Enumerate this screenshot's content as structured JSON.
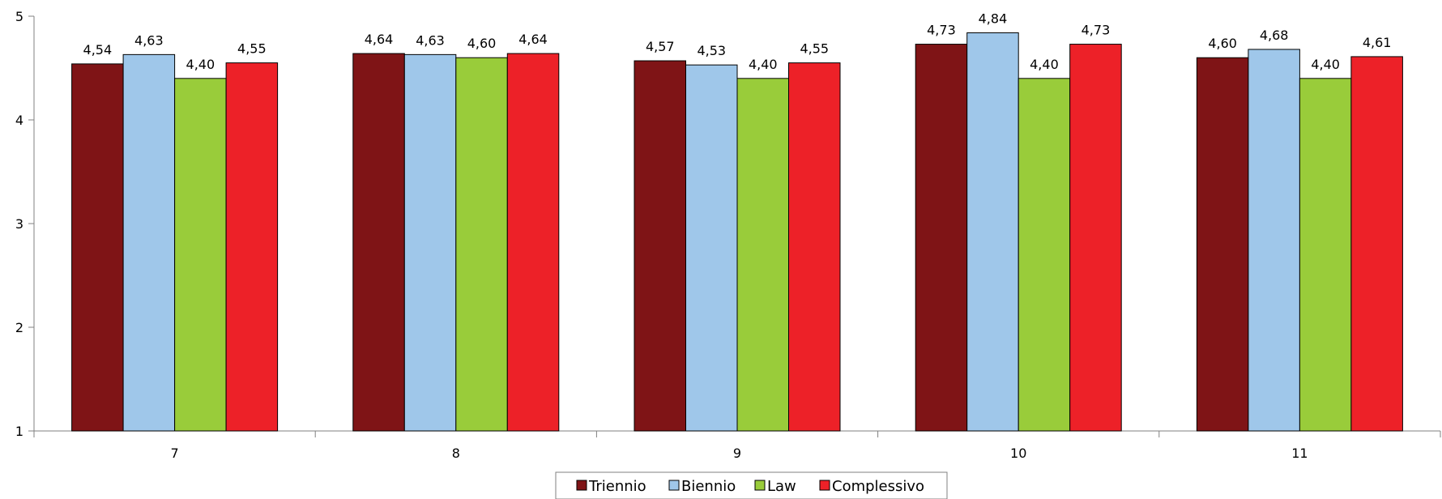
{
  "chart_data": {
    "type": "bar",
    "categories": [
      "7",
      "8",
      "9",
      "10",
      "11"
    ],
    "series": [
      {
        "name": "Triennio",
        "color": "#7f1416",
        "values": [
          4.54,
          4.64,
          4.57,
          4.73,
          4.6
        ],
        "labels": [
          "4,54",
          "4,64",
          "4,57",
          "4,73",
          "4,60"
        ]
      },
      {
        "name": "Biennio",
        "color": "#9fc7ea",
        "values": [
          4.63,
          4.63,
          4.53,
          4.84,
          4.68
        ],
        "labels": [
          "4,63",
          "4,63",
          "4,53",
          "4,84",
          "4,68"
        ]
      },
      {
        "name": "Law",
        "color": "#99cc3a",
        "values": [
          4.4,
          4.6,
          4.4,
          4.4,
          4.4
        ],
        "labels": [
          "4,40",
          "4,60",
          "4,40",
          "4,40",
          "4,40"
        ]
      },
      {
        "name": "Complessivo",
        "color": "#ed2128",
        "values": [
          4.55,
          4.64,
          4.55,
          4.73,
          4.61
        ],
        "labels": [
          "4,55",
          "4,64",
          "4,55",
          "4,73",
          "4,61"
        ]
      }
    ],
    "ylim": [
      1,
      5
    ],
    "yticks": [
      "1",
      "2",
      "3",
      "4",
      "5"
    ],
    "title": "",
    "xlabel": "",
    "ylabel": "",
    "legend_position": "bottom-center",
    "grid": false
  }
}
